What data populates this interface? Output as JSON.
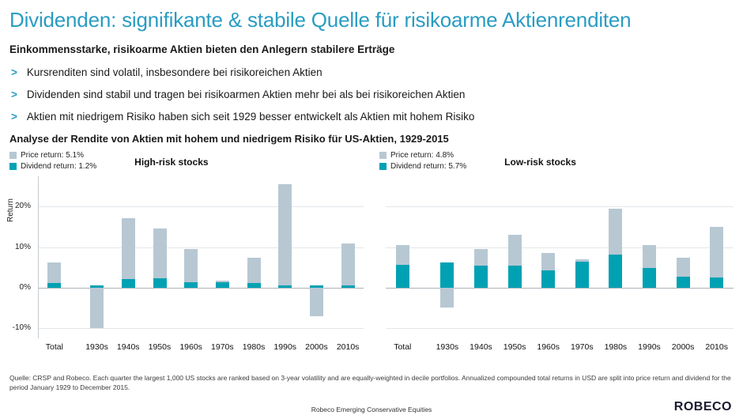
{
  "slide": {
    "title": "Dividenden: signifikante & stabile Quelle für risikoarme Aktienrenditen",
    "intro": "Einkommensstarke, risikoarme Aktien bieten den Anlegern stabilere Erträge",
    "bullet_marker": ">",
    "bullets": [
      "Kursrenditen sind volatil, insbesondere bei risikoreichen Aktien",
      "Dividenden sind stabil und tragen bei risikoarmen Aktien mehr bei als bei risikoreichen Aktien",
      "Aktien mit niedrigem Risiko haben sich seit 1929 besser entwickelt als Aktien mit hohem Risiko"
    ],
    "analysis_line": "Analyse der Rendite von Aktien mit hohem und niedrigem Risiko für US-Aktien, 1929-2015",
    "footnote": "Quelle: CRSP and Robeco. Each quarter the largest 1,000 US stocks are ranked based on 3-year volatility and are equally-weighted in decile portfolios. Annualized compounded total returns in USD are split into price return and dividend for the period January 1929 to December 2015.",
    "footer_center": "Robeco Emerging Conservative Equities",
    "logo": "ROBECO"
  },
  "colors": {
    "accent": "#2a9cc2",
    "price": "#b7c8d3",
    "dividend": "#00a1b3"
  },
  "chart_data": [
    {
      "type": "bar",
      "stacked": true,
      "title": "High-risk stocks",
      "ylabel": "Return",
      "categories": [
        "Total",
        "1930s",
        "1940s",
        "1950s",
        "1960s",
        "1970s",
        "1980s",
        "1990s",
        "2000s",
        "2010s"
      ],
      "series": [
        {
          "name": "Price return: 5.1%",
          "key": "price",
          "values": [
            5.1,
            -10.0,
            15.0,
            12.2,
            8.2,
            0.3,
            6.3,
            25.0,
            -7.0,
            10.4
          ]
        },
        {
          "name": "Dividend return: 1.2%",
          "key": "dividend",
          "values": [
            1.2,
            0.6,
            2.2,
            2.4,
            1.3,
            1.4,
            1.2,
            0.5,
            0.5,
            0.6
          ]
        }
      ],
      "yticks": [
        20,
        10,
        0,
        -10
      ],
      "ylim": [
        -12.5,
        27.5
      ],
      "show_y_labels": true,
      "legend_position": "top-left",
      "grid": true
    },
    {
      "type": "bar",
      "stacked": true,
      "title": "Low-risk stocks",
      "ylabel": "",
      "categories": [
        "Total",
        "1930s",
        "1940s",
        "1950s",
        "1960s",
        "1970s",
        "1980s",
        "1990s",
        "2000s",
        "2010s"
      ],
      "series": [
        {
          "name": "Price return: 4.8%",
          "key": "price",
          "values": [
            4.8,
            -5.0,
            4.0,
            7.5,
            4.3,
            0.5,
            11.3,
            5.7,
            4.8,
            12.5
          ]
        },
        {
          "name": "Dividend return: 5.7%",
          "key": "dividend",
          "values": [
            5.7,
            6.2,
            5.5,
            5.5,
            4.2,
            6.5,
            8.2,
            4.8,
            2.7,
            2.5
          ]
        }
      ],
      "yticks": [
        20,
        10,
        0,
        -10
      ],
      "ylim": [
        -12.5,
        27.5
      ],
      "show_y_labels": false,
      "legend_position": "top-left",
      "grid": true
    }
  ]
}
